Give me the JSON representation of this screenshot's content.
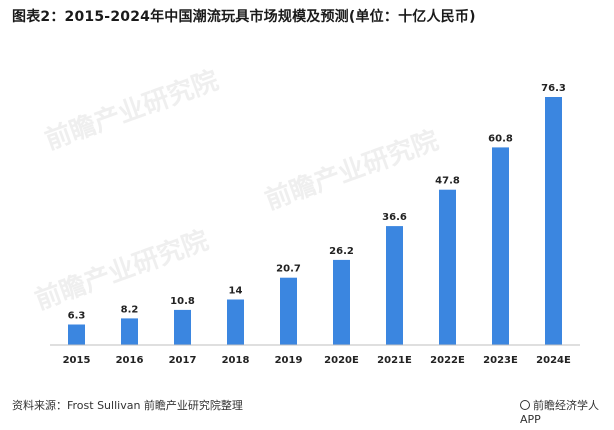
{
  "header": {
    "title": "图表2：2015-2024年中国潮流玩具市场规模及预测(单位：十亿人民币)"
  },
  "watermark": "前瞻产业研究院",
  "footer": {
    "source": "资料来源：Frost Sullivan 前瞻产业研究院整理",
    "brand": "前瞻经济学人APP"
  },
  "chart_data": {
    "type": "bar",
    "title": "图表2：2015-2024年中国潮流玩具市场规模及预测(单位：十亿人民币)",
    "categories": [
      "2015",
      "2016",
      "2017",
      "2018",
      "2019",
      "2020E",
      "2021E",
      "2022E",
      "2023E",
      "2024E"
    ],
    "values": [
      6.3,
      8.2,
      10.8,
      14,
      20.7,
      26.2,
      36.6,
      47.8,
      60.8,
      76.3
    ],
    "value_labels": [
      "6.3",
      "8.2",
      "10.8",
      "14",
      "20.7",
      "26.2",
      "36.6",
      "47.8",
      "60.8",
      "76.3"
    ],
    "bar_color": "#3b86e0",
    "ylim": [
      0,
      80
    ],
    "grid": false,
    "y_axis_visible": false
  }
}
